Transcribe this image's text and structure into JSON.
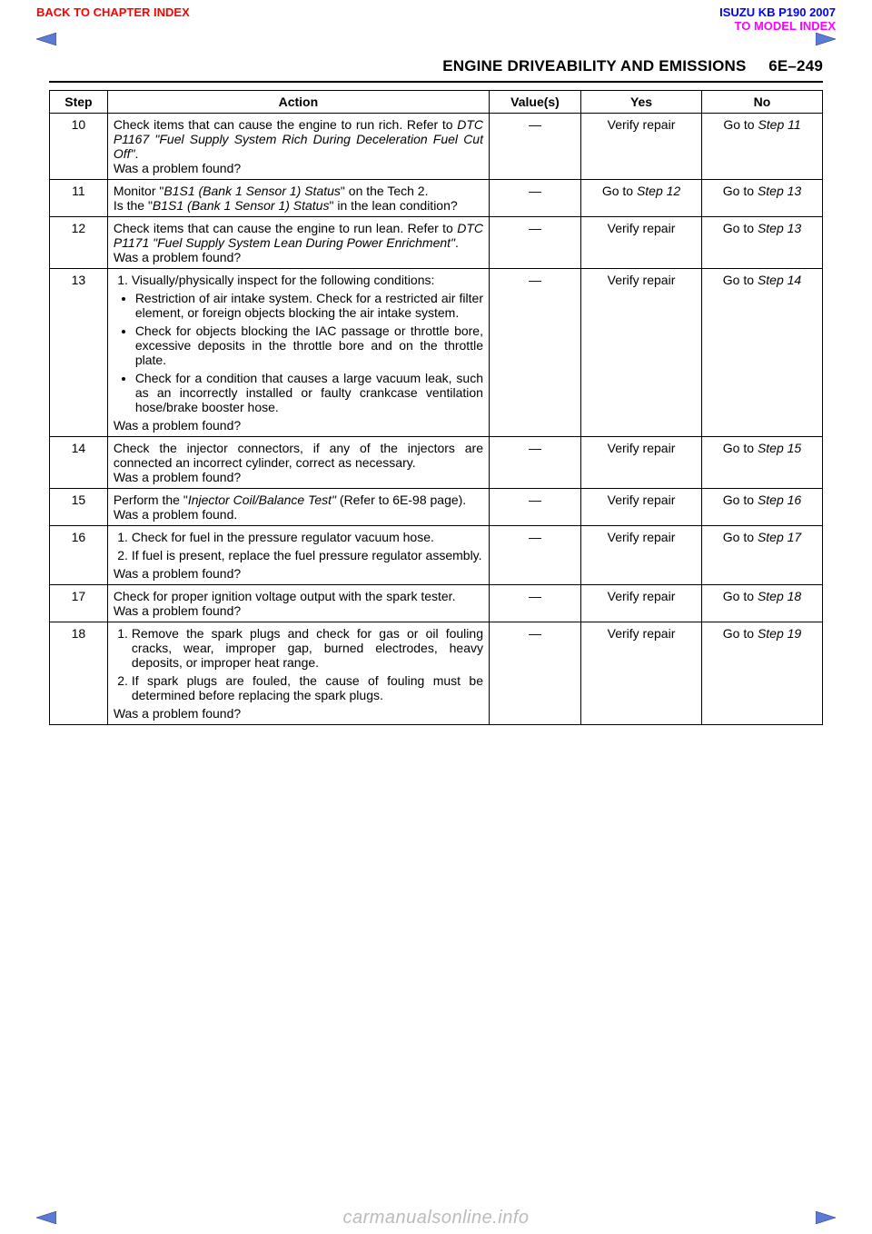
{
  "topLinks": {
    "left": "BACK TO CHAPTER INDEX",
    "rightLine1": "ISUZU KB P190 2007",
    "rightLine2": "TO MODEL INDEX"
  },
  "header": {
    "title": "ENGINE DRIVEABILITY AND EMISSIONS",
    "pageNum": "6E–249"
  },
  "columns": {
    "step": "Step",
    "action": "Action",
    "values": "Value(s)",
    "yes": "Yes",
    "no": "No"
  },
  "rows": [
    {
      "step": "10",
      "actionHtml": "Check items that can cause the engine to run rich. Refer to <span class=\"italic\">DTC P1167 \"Fuel Supply System Rich During Deceleration Fuel Cut Off\"</span>.<br>Was a problem found?",
      "values": "—",
      "yes": "Verify repair",
      "noHtml": "Go to <span class=\"italic\">Step 11</span>"
    },
    {
      "step": "11",
      "actionHtml": "Monitor \"<span class=\"italic\">B1S1 (Bank 1 Sensor 1) Status</span>\" on the Tech 2.<br>Is the \"<span class=\"italic\">B1S1 (Bank 1 Sensor 1) Status</span>\" in the lean condition?",
      "values": "—",
      "yesHtml": "Go to <span class=\"italic\">Step 12</span>",
      "noHtml": "Go to <span class=\"italic\">Step 13</span>"
    },
    {
      "step": "12",
      "actionHtml": "Check items that can cause the engine to run lean. Refer to <span class=\"italic\">DTC P1171 \"Fuel Supply System Lean During Power Enrichment\"</span>.<br>Was a problem found?",
      "values": "—",
      "yes": "Verify repair",
      "noHtml": "Go to <span class=\"italic\">Step 13</span>"
    },
    {
      "step": "13",
      "actionHtml": "<ol class=\"numlist\"><li>Visually/physically inspect for the following conditions:</li></ol><ul class=\"bullets\"><li>Restriction of air intake system. Check for a restricted air filter element, or foreign objects blocking the air intake system.</li><li>Check for objects blocking the IAC passage or throttle bore, excessive deposits in the throttle bore and on the throttle plate.</li><li>Check for a condition that causes a large vacuum leak, such as an incorrectly installed or faulty crankcase ventilation hose/brake booster hose.</li></ul>Was a problem found?",
      "values": "—",
      "yes": "Verify repair",
      "noHtml": "Go to <span class=\"italic\">Step 14</span>"
    },
    {
      "step": "14",
      "actionHtml": "Check the injector connectors, if any of the injectors are connected an incorrect cylinder, correct as necessary.<br>Was a problem found?",
      "values": "—",
      "yes": "Verify repair",
      "noHtml": "Go to <span class=\"italic\">Step 15</span>"
    },
    {
      "step": "15",
      "actionHtml": "Perform the \"<span class=\"italic\">Injector Coil/Balance Test\"</span> (Refer to 6E-98 page).<br>Was a problem found.",
      "values": "—",
      "yes": "Verify repair",
      "noHtml": "Go to <span class=\"italic\">Step 16</span>"
    },
    {
      "step": "16",
      "actionHtml": "<ol class=\"numlist\"><li>Check for fuel in the pressure regulator vacuum hose.</li><li>If fuel is present, replace the fuel pressure regulator assembly.</li></ol>Was a problem found?",
      "values": "—",
      "yes": "Verify repair",
      "noHtml": "Go to <span class=\"italic\">Step 17</span>"
    },
    {
      "step": "17",
      "actionHtml": "Check for proper ignition voltage output with the spark tester.<br>Was a problem found?",
      "values": "—",
      "yes": "Verify repair",
      "noHtml": "Go to <span class=\"italic\">Step 18</span>"
    },
    {
      "step": "18",
      "actionHtml": "<ol class=\"numlist\"><li>Remove the spark plugs and check for gas or oil fouling cracks, wear, improper gap, burned electrodes, heavy deposits, or improper heat range.</li><li>If spark plugs are fouled, the cause of fouling must be determined before replacing the spark plugs.</li></ol>Was a problem found?",
      "values": "—",
      "yes": "Verify repair",
      "noHtml": "Go to <span class=\"italic\">Step 19</span>"
    }
  ],
  "watermark": "carmanualsonline.info",
  "colors": {
    "link_red": "#ff0000",
    "link_blue": "#0000ff",
    "link_magenta": "#ff00ff",
    "arrow_blue": "#4169e1",
    "border": "#000000",
    "watermark": "#bbbbbb"
  }
}
